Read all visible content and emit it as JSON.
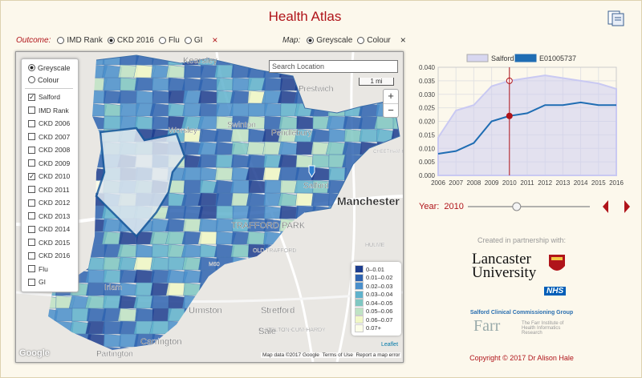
{
  "header": {
    "title": "Health Atlas"
  },
  "outcome": {
    "label": "Outcome:",
    "options": [
      "IMD Rank",
      "CKD 2016",
      "Flu",
      "GI"
    ],
    "selected": 1,
    "close": "×"
  },
  "map_style": {
    "label": "Map:",
    "options": [
      "Greyscale",
      "Colour"
    ],
    "selected": 0,
    "close": "×"
  },
  "map": {
    "search_placeholder": "Search Location",
    "scale": "1 mi",
    "zoom_in": "+",
    "zoom_out": "−",
    "layer_radios": [
      "Greyscale",
      "Colour"
    ],
    "layer_radio_selected": 0,
    "layers": [
      "Salford",
      "IMD Rank",
      "CKD 2006",
      "CKD 2007",
      "CKD 2008",
      "CKD 2009",
      "CKD 2010",
      "CKD 2011",
      "CKD 2012",
      "CKD 2013",
      "CKD 2014",
      "CKD 2015",
      "CKD 2016",
      "Flu",
      "GI"
    ],
    "layers_checked": [
      true,
      false,
      false,
      false,
      false,
      false,
      true,
      false,
      false,
      false,
      false,
      false,
      false,
      false,
      false
    ],
    "places": [
      "Kearsley",
      "Prestwich",
      "Swinton",
      "Pendlebury",
      "Worsley",
      "Astley",
      "Salford",
      "Manchester",
      "TRAFFORD PARK",
      "OLD TRAFFORD",
      "HULME",
      "CHEETHAM HILL",
      "Urmston",
      "Stretford",
      "CHORLTON-CUM-HARDY",
      "Carrington",
      "Sale",
      "Partington",
      "Irlam",
      "M60"
    ],
    "legend": [
      {
        "label": "0–0.01",
        "color": "#1d3d8f"
      },
      {
        "label": "0.01–0.02",
        "color": "#2e63b0"
      },
      {
        "label": "0.02–0.03",
        "color": "#4a8fcb"
      },
      {
        "label": "0.03–0.04",
        "color": "#5fb2cc"
      },
      {
        "label": "0.04–0.05",
        "color": "#7fc7c2"
      },
      {
        "label": "0.05–0.06",
        "color": "#bfe3c4"
      },
      {
        "label": "0.06–0.07",
        "color": "#f1f8c6"
      },
      {
        "label": "0.07+",
        "color": "#fbfde8"
      }
    ],
    "attribution": {
      "google": "Google",
      "map_data": "Map data ©2017 Google",
      "terms": "Terms of Use",
      "report": "Report a map error",
      "leaflet": "Leaflet"
    }
  },
  "chart_data": {
    "type": "line",
    "x": [
      2006,
      2007,
      2008,
      2009,
      2010,
      2011,
      2012,
      2013,
      2014,
      2015,
      2016
    ],
    "series": [
      {
        "name": "Salford",
        "color": "#c9c9f2",
        "values": [
          0.014,
          0.024,
          0.026,
          0.033,
          0.035,
          0.036,
          0.037,
          0.036,
          0.035,
          0.034,
          0.032
        ]
      },
      {
        "name": "E01005737",
        "color": "#1f6db3",
        "values": [
          0.008,
          0.009,
          0.012,
          0.02,
          0.022,
          0.023,
          0.026,
          0.026,
          0.027,
          0.026,
          0.026
        ]
      }
    ],
    "xlim": [
      2006,
      2016
    ],
    "xticks": [
      2006,
      2007,
      2008,
      2009,
      2010,
      2011,
      2012,
      2013,
      2014,
      2015,
      2016
    ],
    "ylim": [
      0,
      0.04
    ],
    "yticks": [
      {
        "value": 0,
        "label": "0.000"
      },
      {
        "value": 0.005,
        "label": "0.005"
      },
      {
        "value": 0.01,
        "label": "0.010"
      },
      {
        "value": 0.015,
        "label": "0.015"
      },
      {
        "value": 0.02,
        "label": "0.020"
      },
      {
        "value": 0.025,
        "label": "0.025"
      },
      {
        "value": 0.03,
        "label": "0.030"
      },
      {
        "value": 0.035,
        "label": "0.035"
      },
      {
        "value": 0.04,
        "label": "0.040"
      }
    ],
    "grid": true
  },
  "year": {
    "label": "Year:",
    "value": 2010
  },
  "credits": {
    "partnership": "Created in partnership with:",
    "lancaster": "Lancaster University",
    "nhs": "NHS",
    "ccg": "Salford Clinical Commissioning Group",
    "farr": "Farr",
    "farr_full": "The Farr Institute of Health Informatics Research",
    "copyright": "Copyright © 2017 Dr Alison Hale"
  }
}
